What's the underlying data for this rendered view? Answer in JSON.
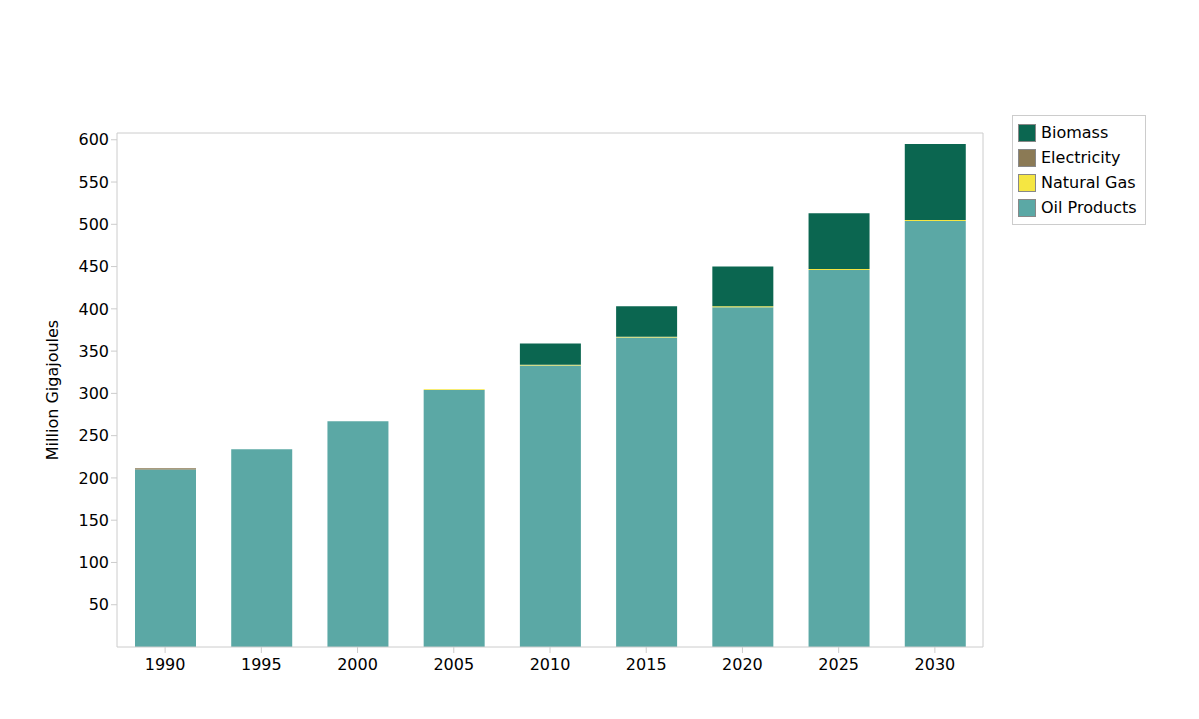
{
  "chart_data": {
    "type": "bar",
    "stacked": true,
    "y_label": "Million Gigajoules",
    "categories": [
      "1990",
      "1995",
      "2000",
      "2005",
      "2010",
      "2015",
      "2020",
      "2025",
      "2030"
    ],
    "series": [
      {
        "name": "Oil Products",
        "color": "#5ba8a5",
        "values": [
          210,
          234,
          267,
          304,
          333,
          366,
          402,
          446,
          504
        ]
      },
      {
        "name": "Natural Gas",
        "color": "#f5e642",
        "values": [
          0,
          0,
          0,
          1,
          1,
          1,
          1,
          1,
          1
        ]
      },
      {
        "name": "Electricity",
        "color": "#8b7a55",
        "values": [
          1.5,
          0,
          0,
          0,
          0,
          0,
          0,
          0,
          0
        ]
      },
      {
        "name": "Biomass",
        "color": "#0b6650",
        "values": [
          0,
          0,
          0,
          0,
          25,
          36,
          47,
          66,
          90
        ]
      }
    ],
    "ylim": [
      0,
      608
    ],
    "yticks": [
      50,
      100,
      150,
      200,
      250,
      300,
      350,
      400,
      450,
      500,
      550,
      600
    ],
    "grid": false,
    "legend": "right"
  }
}
